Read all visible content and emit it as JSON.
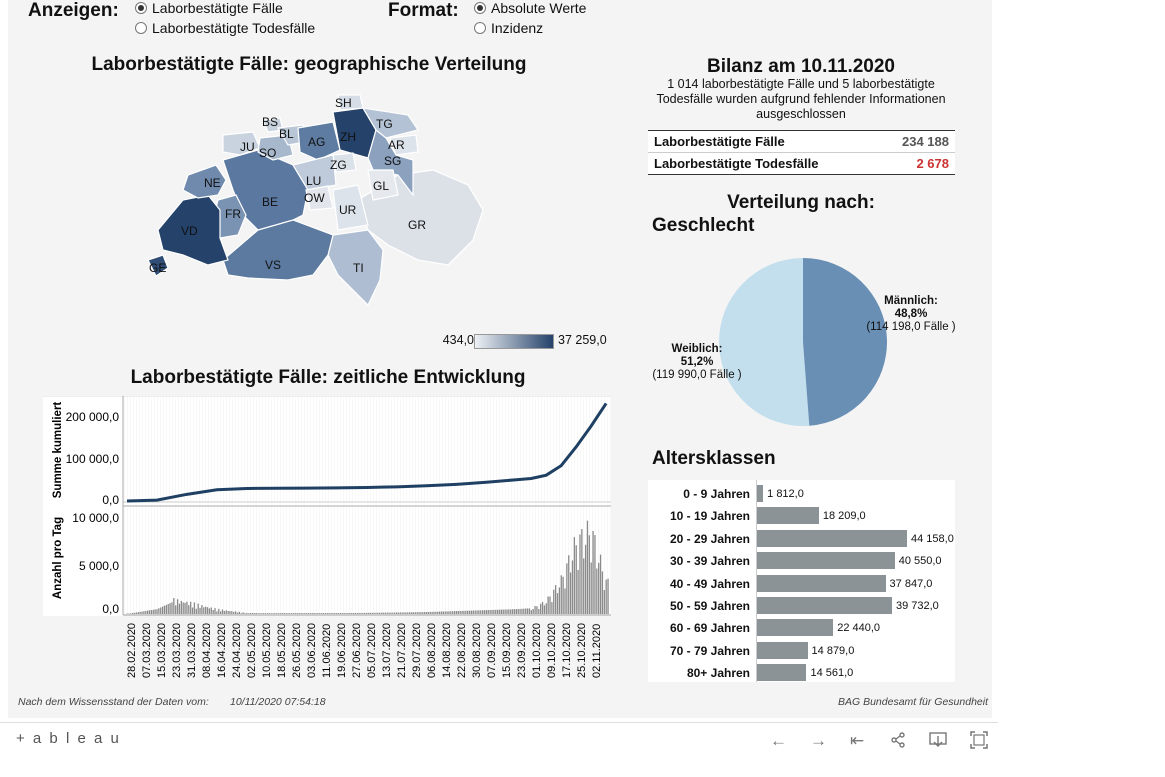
{
  "controls": {
    "anzeigen_label": "Anzeigen:",
    "anzeigen_options": [
      "Laborbestätigte Fälle",
      "Laborbestätigte Todesfälle"
    ],
    "anzeigen_selected": 0,
    "format_label": "Format:",
    "format_options": [
      "Absolute Werte",
      "Inzidenz"
    ],
    "format_selected": 0
  },
  "map": {
    "title": "Laborbestätigte Fälle: geographische Verteilung",
    "legend_min": "434,0",
    "legend_max": "37 259,0",
    "cantons": [
      "BS",
      "SH",
      "BL",
      "ZH",
      "TG",
      "JU",
      "SO",
      "AG",
      "AR",
      "ZG",
      "SG",
      "NE",
      "LU",
      "GL",
      "OW",
      "BE",
      "FR",
      "UR",
      "GR",
      "VD",
      "VS",
      "TI",
      "GE"
    ],
    "colors": {
      "low": "#e6e9ee",
      "high": "#24426a"
    }
  },
  "timeline": {
    "title": "Laborbestätigte Fälle: zeitliche Entwicklung",
    "y1_label": "Summe kumuliert",
    "y1_ticks": [
      "200 000,0",
      "100 000,0",
      "0,0"
    ],
    "y2_label": "Anzahl pro Tag",
    "y2_ticks": [
      "10 000,0",
      "5 000,0",
      "0,0"
    ],
    "dates": [
      "28.02.2020",
      "07.03.2020",
      "15.03.2020",
      "23.03.2020",
      "31.03.2020",
      "08.04.2020",
      "16.04.2020",
      "24.04.2020",
      "02.05.2020",
      "10.05.2020",
      "18.05.2020",
      "26.05.2020",
      "03.06.2020",
      "11.06.2020",
      "19.06.2020",
      "27.06.2020",
      "05.07.2020",
      "13.07.2020",
      "21.07.2020",
      "29.07.2020",
      "06.08.2020",
      "14.08.2020",
      "22.08.2020",
      "30.08.2020",
      "07.09.2020",
      "15.09.2020",
      "23.09.2020",
      "01.10.2020",
      "09.10.2020",
      "17.10.2020",
      "25.10.2020",
      "02.11.2020"
    ]
  },
  "bilanz": {
    "title": "Bilanz am 10.11.2020",
    "note": "1 014 laborbestätigte Fälle und 5 laborbestätigte Todesfälle wurden aufgrund fehlender Informationen ausgeschlossen",
    "rows": [
      {
        "label": "Laborbestätigte Fälle",
        "value": "234 188"
      },
      {
        "label": "Laborbestätigte Todesfälle",
        "value": "2 678"
      }
    ]
  },
  "verteilung": {
    "title": "Verteilung nach:",
    "subtitle": "Geschlecht",
    "male_label": "Männlich:",
    "male_pct": "48,8%",
    "male_count": "(114 198,0 Fälle )",
    "female_label": "Weiblich:",
    "female_pct": "51,2%",
    "female_count": "(119 990,0 Fälle )"
  },
  "alter": {
    "title": "Altersklassen"
  },
  "chart_data": [
    {
      "type": "pie",
      "categories": [
        "Männlich",
        "Weiblich"
      ],
      "values": [
        48.8,
        51.2
      ],
      "colors": [
        "#6a8fb5",
        "#c3dfee"
      ]
    },
    {
      "type": "bar",
      "categories": [
        "0 - 9 Jahren",
        "10 - 19 Jahren",
        "20 - 29 Jahren",
        "30 - 39 Jahren",
        "40 - 49 Jahren",
        "50 - 59 Jahren",
        "60 - 69 Jahren",
        "70 - 79 Jahren",
        "80+ Jahren"
      ],
      "values": [
        1812,
        18209,
        44158,
        40550,
        37847,
        39732,
        22440,
        14879,
        14561
      ],
      "value_labels": [
        "1 812,0",
        "18 209,0",
        "44 158,0",
        "40 550,0",
        "37 847,0",
        "39 732,0",
        "22 440,0",
        "14 879,0",
        "14 561,0"
      ]
    },
    {
      "type": "line",
      "ylabel": "Summe kumuliert",
      "ylim": [
        0,
        240000
      ],
      "x": [
        "28.02.2020",
        "15.03.2020",
        "31.03.2020",
        "16.04.2020",
        "02.05.2020",
        "18.05.2020",
        "03.06.2020",
        "19.06.2020",
        "05.07.2020",
        "21.07.2020",
        "06.08.2020",
        "22.08.2020",
        "07.09.2020",
        "23.09.2020",
        "01.10.2020",
        "09.10.2020",
        "17.10.2020",
        "25.10.2020",
        "02.11.2020",
        "10.11.2020"
      ],
      "values": [
        15,
        2200,
        16000,
        27000,
        30000,
        30700,
        31000,
        31400,
        32500,
        34000,
        36500,
        40000,
        45000,
        51000,
        54000,
        62000,
        85000,
        130000,
        180000,
        234188
      ]
    },
    {
      "type": "bar",
      "ylabel": "Anzahl pro Tag",
      "ylim": [
        0,
        10500
      ],
      "x": [
        "28.02.2020",
        "15.03.2020",
        "23.03.2020",
        "31.03.2020",
        "08.04.2020",
        "16.04.2020",
        "02.05.2020",
        "27.06.2020",
        "21.07.2020",
        "06.08.2020",
        "22.08.2020",
        "07.09.2020",
        "23.09.2020",
        "01.10.2020",
        "09.10.2020",
        "17.10.2020",
        "25.10.2020",
        "02.11.2020",
        "10.11.2020"
      ],
      "values": [
        5,
        500,
        1200,
        1000,
        700,
        400,
        80,
        100,
        150,
        200,
        300,
        400,
        500,
        600,
        1500,
        4000,
        8500,
        10000,
        3800
      ]
    }
  ],
  "footer": {
    "stand_label": "Nach dem Wissensstand der Daten vom:",
    "stand_value": "10/11/2020 07:54:18",
    "source": "BAG Bundesamt für Gesundheit"
  },
  "toolbar": {
    "logo": "+ a b l e a u",
    "icons": [
      "undo-icon",
      "redo-icon",
      "revert-icon",
      "share-icon",
      "download-icon",
      "fullscreen-icon"
    ]
  }
}
